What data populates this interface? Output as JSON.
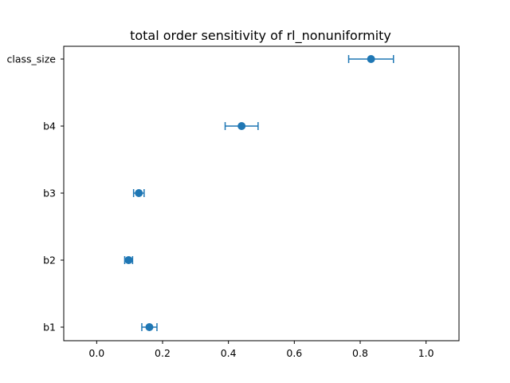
{
  "chart_data": {
    "type": "scatter",
    "title": "total order sensitivity of rl_nonuniformity",
    "xlabel": "",
    "ylabel": "",
    "xlim": [
      -0.1,
      1.1
    ],
    "categories": [
      "class_size",
      "b4",
      "b3",
      "b2",
      "b1"
    ],
    "values": [
      0.833,
      0.44,
      0.128,
      0.097,
      0.16
    ],
    "errors": [
      0.068,
      0.05,
      0.016,
      0.012,
      0.023
    ],
    "xticks": [
      "0.0",
      "0.2",
      "0.4",
      "0.6",
      "0.8",
      "1.0"
    ],
    "xtick_values": [
      0.0,
      0.2,
      0.4,
      0.6,
      0.8,
      1.0
    ],
    "color": "#1f77b4",
    "grid": false
  }
}
